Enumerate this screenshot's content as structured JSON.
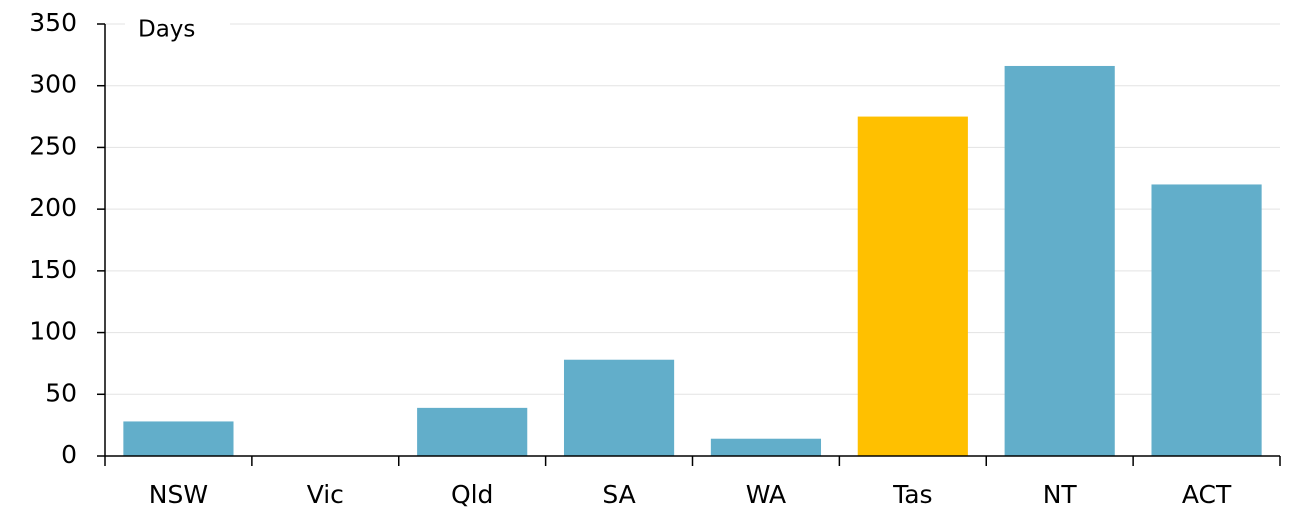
{
  "chart_data": {
    "type": "bar",
    "y_label": "Days",
    "categories": [
      "NSW",
      "Vic",
      "Qld",
      "SA",
      "WA",
      "Tas",
      "NT",
      "ACT"
    ],
    "values": [
      28,
      0,
      39,
      78,
      14,
      275,
      316,
      220
    ],
    "colors": [
      "#62aeca",
      "#62aeca",
      "#62aeca",
      "#62aeca",
      "#62aeca",
      "#ffc000",
      "#62aeca",
      "#62aeca"
    ],
    "ylim": [
      0,
      350
    ],
    "yticks": [
      0,
      50,
      100,
      150,
      200,
      250,
      300,
      350
    ],
    "grid": true
  }
}
